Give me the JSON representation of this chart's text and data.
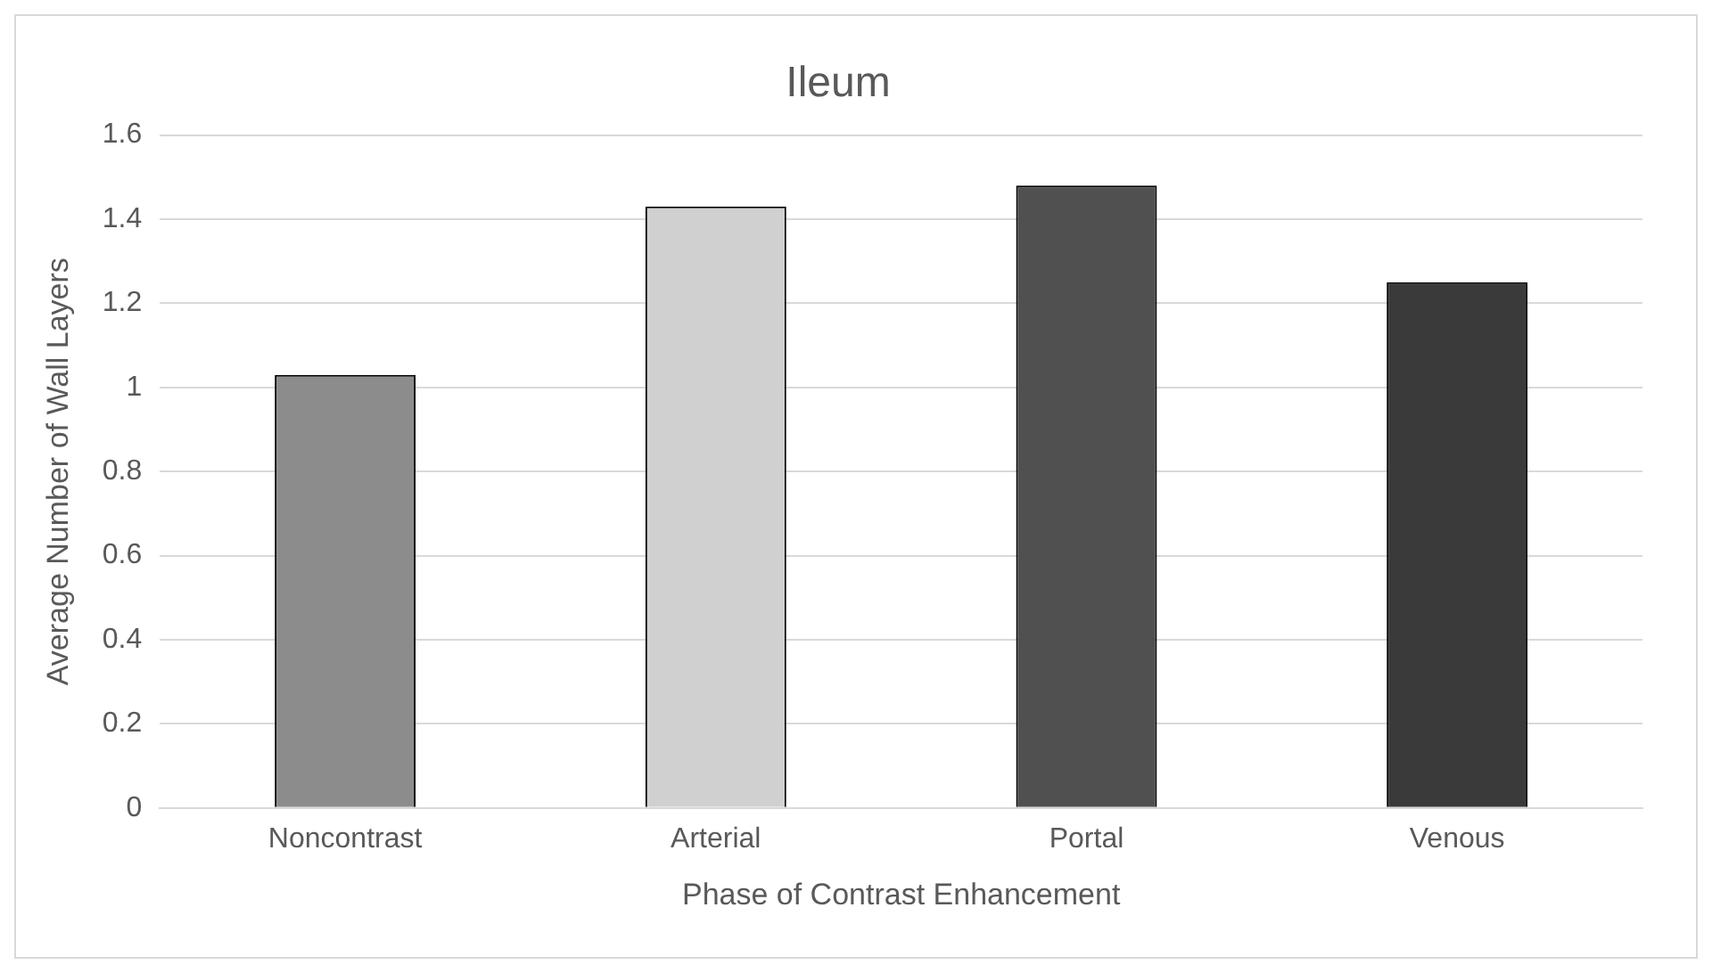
{
  "chart_data": {
    "type": "bar",
    "title": "Ileum",
    "xlabel": "Phase of Contrast Enhancement",
    "ylabel": "Average Number of Wall Layers",
    "categories": [
      "Noncontrast",
      "Arterial",
      "Portal",
      "Venous"
    ],
    "values": [
      1.03,
      1.43,
      1.48,
      1.25
    ],
    "colors": [
      "#8c8c8c",
      "#d0d0d0",
      "#505050",
      "#3a3a3a"
    ],
    "ylim": [
      0,
      1.6
    ],
    "yticks": [
      0,
      0.2,
      0.4,
      0.6,
      0.8,
      1,
      1.2,
      1.4,
      1.6
    ],
    "grid": "y",
    "legend": false
  }
}
